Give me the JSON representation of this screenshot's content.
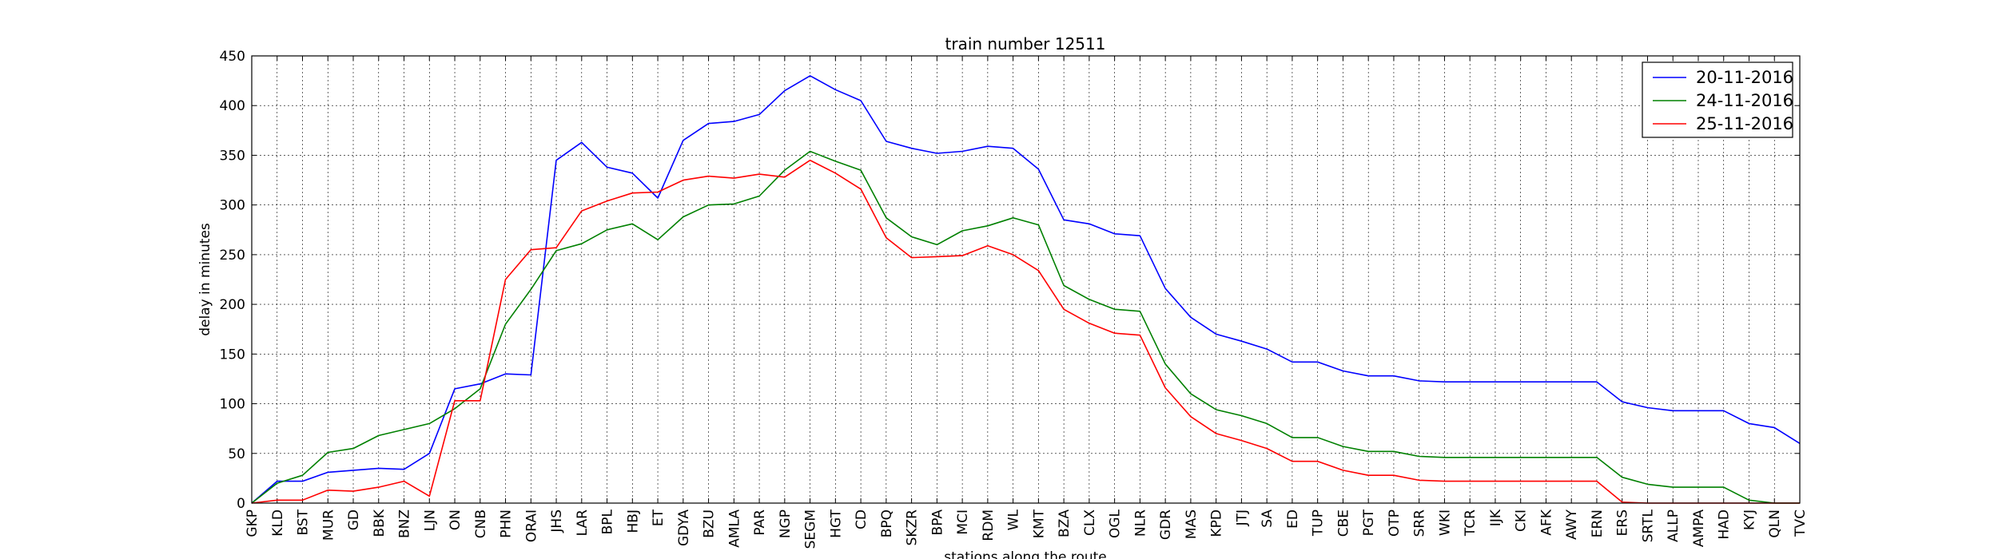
{
  "chart_data": {
    "type": "line",
    "title": "train number 12511",
    "xlabel": "stations along the route",
    "ylabel": "delay in minutes",
    "ylim": [
      0,
      450
    ],
    "yticks": [
      0,
      50,
      100,
      150,
      200,
      250,
      300,
      350,
      400,
      450
    ],
    "grid": true,
    "legend_position": "top-right",
    "categories": [
      "GKP",
      "KLD",
      "BST",
      "MUR",
      "GD",
      "BBK",
      "BNZ",
      "LJN",
      "ON",
      "CNB",
      "PHN",
      "ORAI",
      "JHS",
      "LAR",
      "BPL",
      "HBJ",
      "ET",
      "GDYA",
      "BZU",
      "AMLA",
      "PAR",
      "NGP",
      "SEGM",
      "HGT",
      "CD",
      "BPQ",
      "SKZR",
      "BPA",
      "MCI",
      "RDM",
      "WL",
      "KMT",
      "BZA",
      "CLX",
      "OGL",
      "NLR",
      "GDR",
      "MAS",
      "KPD",
      "JTJ",
      "SA",
      "ED",
      "TUP",
      "CBE",
      "PGT",
      "OTP",
      "SRR",
      "WKI",
      "TCR",
      "IJK",
      "CKI",
      "AFK",
      "AWY",
      "ERN",
      "ERS",
      "SRTL",
      "ALLP",
      "AMPA",
      "HAD",
      "KYJ",
      "QLN",
      "TVC"
    ],
    "series": [
      {
        "name": "20-11-2016",
        "color": "#0000ff",
        "values": [
          0,
          22,
          22,
          31,
          33,
          35,
          34,
          50,
          115,
          120,
          130,
          129,
          345,
          363,
          338,
          332,
          307,
          365,
          382,
          384,
          391,
          415,
          430,
          416,
          405,
          364,
          357,
          352,
          354,
          359,
          357,
          336,
          285,
          281,
          271,
          269,
          216,
          187,
          170,
          163,
          155,
          142,
          142,
          133,
          128,
          128,
          123,
          122,
          122,
          122,
          122,
          122,
          122,
          122,
          102,
          96,
          93,
          93,
          93,
          80,
          76,
          60
        ]
      },
      {
        "name": "24-11-2016",
        "color": "#008000",
        "values": [
          0,
          20,
          28,
          51,
          55,
          68,
          74,
          80,
          95,
          115,
          180,
          215,
          254,
          261,
          275,
          281,
          265,
          288,
          300,
          301,
          309,
          335,
          354,
          344,
          335,
          287,
          268,
          260,
          274,
          279,
          287,
          280,
          219,
          205,
          195,
          193,
          140,
          110,
          94,
          88,
          80,
          66,
          66,
          57,
          52,
          52,
          47,
          46,
          46,
          46,
          46,
          46,
          46,
          46,
          26,
          19,
          16,
          16,
          16,
          3,
          0,
          0
        ]
      },
      {
        "name": "25-11-2016",
        "color": "#ff0000",
        "values": [
          0,
          3,
          3,
          13,
          12,
          16,
          22,
          7,
          103,
          103,
          225,
          255,
          257,
          294,
          304,
          312,
          313,
          325,
          329,
          327,
          331,
          328,
          345,
          332,
          316,
          267,
          247,
          248,
          249,
          259,
          250,
          234,
          195,
          181,
          171,
          169,
          116,
          87,
          70,
          63,
          55,
          42,
          42,
          33,
          28,
          28,
          23,
          22,
          22,
          22,
          22,
          22,
          22,
          22,
          1,
          0,
          0,
          0,
          0,
          0,
          0,
          0
        ]
      }
    ]
  }
}
